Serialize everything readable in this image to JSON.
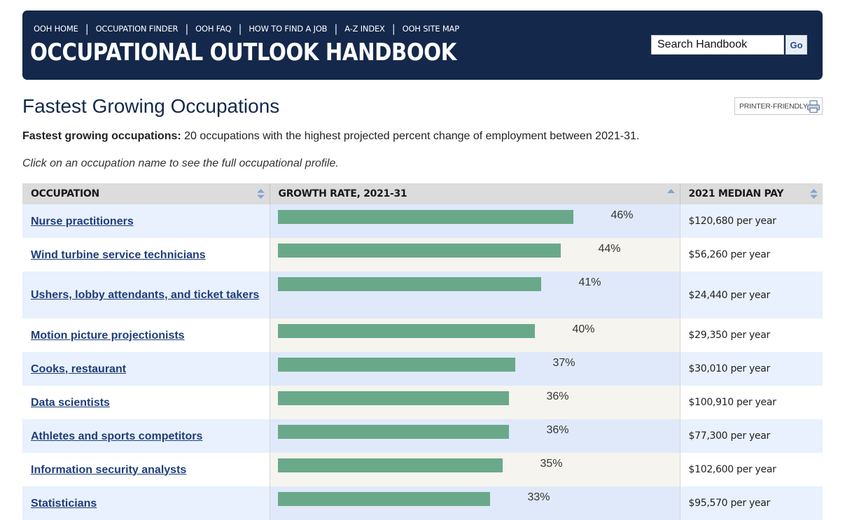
{
  "header": {
    "nav": [
      "OOH HOME",
      "OCCUPATION FINDER",
      "OOH FAQ",
      "HOW TO FIND A JOB",
      "A-Z INDEX",
      "OOH SITE MAP"
    ],
    "title": "OCCUPATIONAL OUTLOOK HANDBOOK",
    "search_placeholder": "Search Handbook",
    "go_label": "Go"
  },
  "page": {
    "title": "Fastest Growing Occupations",
    "printer_label": "PRINTER-FRIENDLY",
    "intro_bold": "Fastest growing occupations:",
    "intro_text": " 20 occupations with the highest projected percent change of employment between 2021-31.",
    "hint": "Click on an occupation name to see the full occupational profile."
  },
  "table": {
    "headers": [
      "OCCUPATION",
      "GROWTH RATE, 2021-31",
      "2021 MEDIAN PAY"
    ],
    "max_growth": 46,
    "rows": [
      {
        "occupation": "Nurse practitioners",
        "growth": 46,
        "growth_label": "46%",
        "pay": "$120,680 per year"
      },
      {
        "occupation": "Wind turbine service technicians",
        "growth": 44,
        "growth_label": "44%",
        "pay": "$56,260 per year"
      },
      {
        "occupation": "Ushers, lobby attendants, and ticket takers",
        "growth": 41,
        "growth_label": "41%",
        "pay": "$24,440 per year"
      },
      {
        "occupation": "Motion picture projectionists",
        "growth": 40,
        "growth_label": "40%",
        "pay": "$29,350 per year"
      },
      {
        "occupation": "Cooks, restaurant",
        "growth": 37,
        "growth_label": "37%",
        "pay": "$30,010 per year"
      },
      {
        "occupation": "Data scientists",
        "growth": 36,
        "growth_label": "36%",
        "pay": "$100,910 per year"
      },
      {
        "occupation": "Athletes and sports competitors",
        "growth": 36,
        "growth_label": "36%",
        "pay": "$77,300 per year"
      },
      {
        "occupation": "Information security analysts",
        "growth": 35,
        "growth_label": "35%",
        "pay": "$102,600 per year"
      },
      {
        "occupation": "Statisticians",
        "growth": 33,
        "growth_label": "33%",
        "pay": "$95,570 per year"
      }
    ]
  },
  "colors": {
    "banner": "#14284b",
    "bar": "#69a989",
    "link": "#1f3d7a"
  }
}
